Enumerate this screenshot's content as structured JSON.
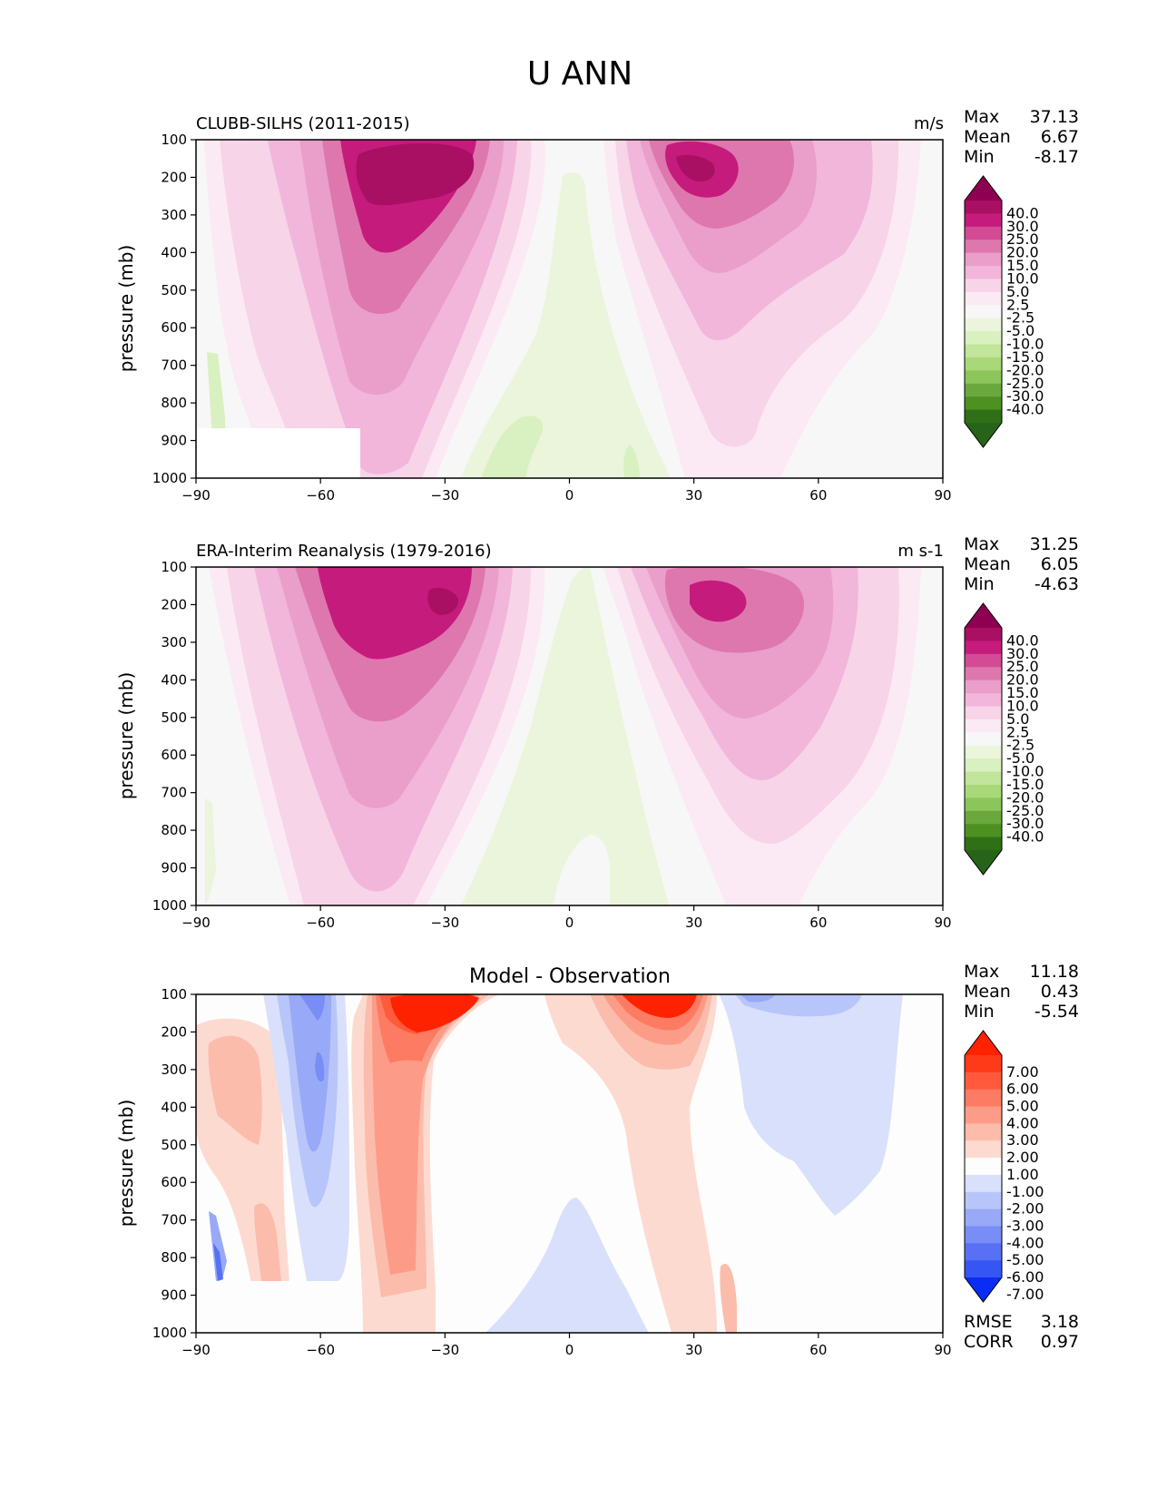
{
  "figure_title": "U ANN",
  "chart_data": [
    {
      "type": "heatmap",
      "title_left": "CLUBB-SILHS (2011-2015)",
      "title_right": "m/s",
      "ylabel": "pressure (mb)",
      "x_ticks": [
        "−90",
        "−60",
        "−30",
        "0",
        "30",
        "60",
        "90"
      ],
      "y_ticks": [
        "100",
        "200",
        "300",
        "400",
        "500",
        "600",
        "700",
        "800",
        "900",
        "1000"
      ],
      "xlim": [
        -90,
        90
      ],
      "ylim": [
        1000,
        100
      ],
      "stats": [
        {
          "label": "Max",
          "value": "37.13"
        },
        {
          "label": "Mean",
          "value": "6.67"
        },
        {
          "label": "Min",
          "value": "-8.17"
        }
      ],
      "colorbar": {
        "labels": [
          "40.0",
          "30.0",
          "25.0",
          "20.0",
          "15.0",
          "10.0",
          "5.0",
          "2.5",
          "-2.5",
          "-5.0",
          "-10.0",
          "-15.0",
          "-20.0",
          "-25.0",
          "-30.0",
          "-40.0"
        ],
        "colors": [
          "#8e0152",
          "#a90f63",
          "#c51b7d",
          "#d24b94",
          "#de77ae",
          "#e99fca",
          "#f1b6da",
          "#f7d4e8",
          "#fbeaf3",
          "#f7f7f7",
          "#eaf5dc",
          "#d9f0c0",
          "#c1e59a",
          "#a8d878",
          "#8cc65a",
          "#6aa83d",
          "#4d9221",
          "#2f7017",
          "#276419"
        ]
      },
      "features": [
        {
          "kind": "jet",
          "lat": -38,
          "plev": 220,
          "peak": 37.1
        },
        {
          "kind": "jet",
          "lat": 28,
          "plev": 200,
          "peak": 32.5
        },
        {
          "kind": "easterly",
          "lat": 5,
          "plev": 600,
          "peak": -8.2
        },
        {
          "kind": "surface-mask",
          "lat_range": [
            -90,
            -51
          ],
          "plev_range": [
            870,
            1000
          ]
        }
      ]
    },
    {
      "type": "heatmap",
      "title_left": "ERA-Interim Reanalysis (1979-2016)",
      "title_right": "m s-1",
      "ylabel": "pressure (mb)",
      "x_ticks": [
        "−90",
        "−60",
        "−30",
        "0",
        "30",
        "60",
        "90"
      ],
      "y_ticks": [
        "100",
        "200",
        "300",
        "400",
        "500",
        "600",
        "700",
        "800",
        "900",
        "1000"
      ],
      "xlim": [
        -90,
        90
      ],
      "ylim": [
        1000,
        100
      ],
      "stats": [
        {
          "label": "Max",
          "value": "31.25"
        },
        {
          "label": "Mean",
          "value": "6.05"
        },
        {
          "label": "Min",
          "value": "-4.63"
        }
      ],
      "colorbar": {
        "labels": [
          "40.0",
          "30.0",
          "25.0",
          "20.0",
          "15.0",
          "10.0",
          "5.0",
          "2.5",
          "-2.5",
          "-5.0",
          "-10.0",
          "-15.0",
          "-20.0",
          "-25.0",
          "-30.0",
          "-40.0"
        ],
        "colors": [
          "#8e0152",
          "#a90f63",
          "#c51b7d",
          "#d24b94",
          "#de77ae",
          "#e99fca",
          "#f1b6da",
          "#f7d4e8",
          "#fbeaf3",
          "#f7f7f7",
          "#eaf5dc",
          "#d9f0c0",
          "#c1e59a",
          "#a8d878",
          "#8cc65a",
          "#6aa83d",
          "#4d9221",
          "#2f7017",
          "#276419"
        ]
      },
      "features": [
        {
          "kind": "jet",
          "lat": -33,
          "plev": 210,
          "peak": 31.2
        },
        {
          "kind": "jet",
          "lat": 33,
          "plev": 200,
          "peak": 30.0
        },
        {
          "kind": "easterly",
          "lat": 2,
          "plev": 650,
          "peak": -4.6
        }
      ]
    },
    {
      "type": "heatmap",
      "title_center": "Model - Observation",
      "ylabel": "pressure (mb)",
      "x_ticks": [
        "−90",
        "−60",
        "−30",
        "0",
        "30",
        "60",
        "90"
      ],
      "y_ticks": [
        "100",
        "200",
        "300",
        "400",
        "500",
        "600",
        "700",
        "800",
        "900",
        "1000"
      ],
      "xlim": [
        -90,
        90
      ],
      "ylim": [
        1000,
        100
      ],
      "stats": [
        {
          "label": "Max",
          "value": "11.18"
        },
        {
          "label": "Mean",
          "value": "0.43"
        },
        {
          "label": "Min",
          "value": "-5.54"
        }
      ],
      "extra_stats": [
        {
          "label": "RMSE",
          "value": "3.18"
        },
        {
          "label": "CORR",
          "value": "0.97"
        }
      ],
      "colorbar": {
        "labels": [
          "7.00",
          "6.00",
          "5.00",
          "4.00",
          "3.00",
          "2.00",
          "1.00",
          "-1.00",
          "-2.00",
          "-3.00",
          "-4.00",
          "-5.00",
          "-6.00",
          "-7.00"
        ],
        "colors": [
          "#ff2200",
          "#ff3a18",
          "#ff5a3c",
          "#fd7b62",
          "#fc9c88",
          "#fcbcab",
          "#fddad0",
          "#fdfdfd",
          "#d9e0fb",
          "#b8c5fa",
          "#98a9f7",
          "#788df5",
          "#5871f4",
          "#3656f3",
          "#0a2cf5"
        ]
      },
      "features": [
        {
          "kind": "positive",
          "lat": -38,
          "plev": 170,
          "peak": 11.2
        },
        {
          "kind": "positive",
          "lat": 22,
          "plev": 140,
          "peak": 9.0
        },
        {
          "kind": "negative",
          "lat": -60,
          "plev": 300,
          "peak": -5.5
        },
        {
          "kind": "negative",
          "lat": 55,
          "plev": 350,
          "peak": -3.0
        }
      ]
    }
  ]
}
